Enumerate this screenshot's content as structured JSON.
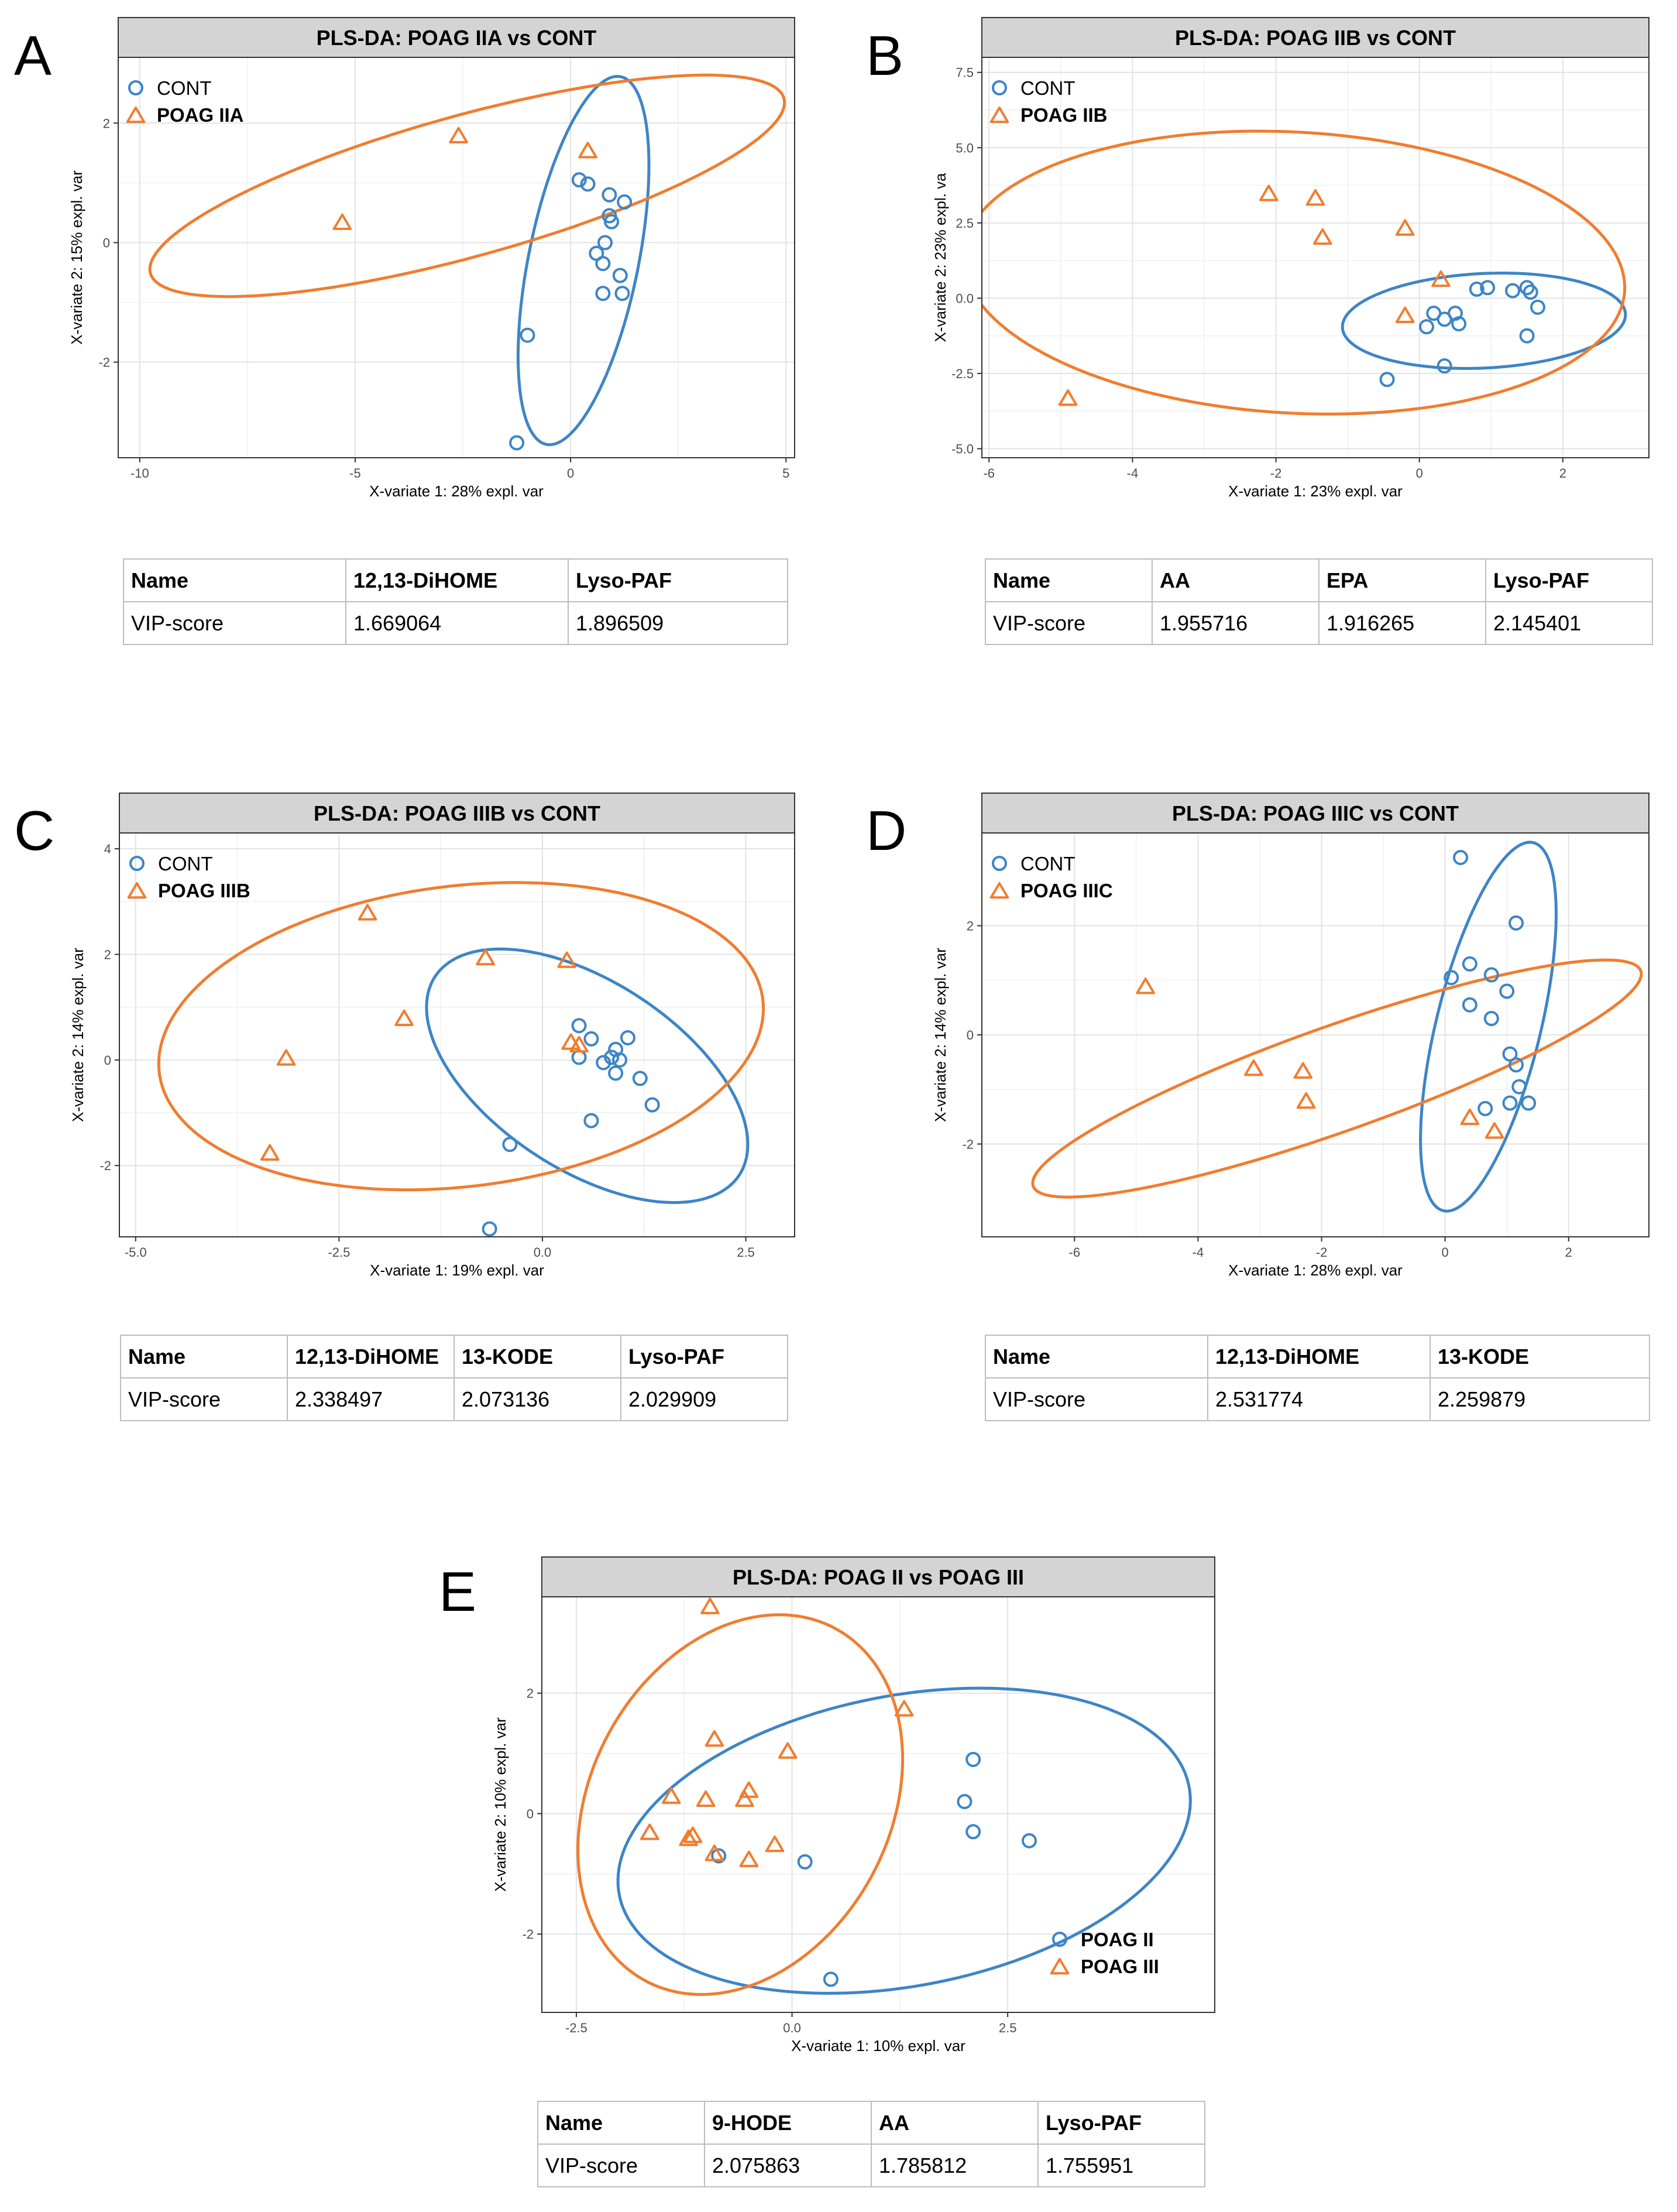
{
  "colors": {
    "cont": "#3d85c6",
    "poag": "#f07d2f",
    "strip": "#d4d4d4"
  },
  "panels": [
    {
      "letter": "A"
    },
    {
      "letter": "B"
    },
    {
      "letter": "C"
    },
    {
      "letter": "D"
    },
    {
      "letter": "E"
    }
  ],
  "chart_data": [
    {
      "type": "scatter",
      "title": "PLS-DA: POAG IIA vs CONT",
      "xlabel": "X-variate 1: 28% expl. var",
      "ylabel": "X-variate 2: 15% expl. var",
      "xlim": [
        -10.5,
        5.2
      ],
      "ylim": [
        -3.6,
        3.1
      ],
      "xticks": [
        -10,
        -5,
        0,
        5
      ],
      "yticks": [
        -2,
        0,
        2
      ],
      "grid": true,
      "legend_position": "top-left",
      "series": [
        {
          "name": "CONT",
          "marker": "circle",
          "color": "#3d85c6",
          "points": [
            [
              0.2,
              1.05
            ],
            [
              0.4,
              0.98
            ],
            [
              0.9,
              0.8
            ],
            [
              1.25,
              0.68
            ],
            [
              0.9,
              0.45
            ],
            [
              0.95,
              0.35
            ],
            [
              0.8,
              0.0
            ],
            [
              0.6,
              -0.18
            ],
            [
              0.75,
              -0.35
            ],
            [
              1.15,
              -0.55
            ],
            [
              0.75,
              -0.85
            ],
            [
              1.2,
              -0.85
            ],
            [
              -1.0,
              -1.55
            ],
            [
              -1.25,
              -3.35
            ]
          ],
          "ellipse": {
            "cx": 0.3,
            "cy": -0.3,
            "rx": 3.2,
            "ry": 1.25,
            "angle_deg": 73
          }
        },
        {
          "name": "POAG IIA",
          "marker": "triangle",
          "color": "#f07d2f",
          "points": [
            [
              0.4,
              1.55
            ],
            [
              -2.6,
              1.8
            ],
            [
              -5.3,
              0.35
            ]
          ],
          "ellipse": {
            "cx": -2.4,
            "cy": 0.95,
            "rx": 7.5,
            "ry": 1.2,
            "angle_deg": 11
          }
        }
      ]
    },
    {
      "type": "scatter",
      "title": "PLS-DA: POAG IIB vs CONT",
      "xlabel": "X-variate 1: 23% expl. var",
      "ylabel": "X-variate 2: 23% expl. va",
      "xlim": [
        -6.1,
        3.2
      ],
      "ylim": [
        -5.3,
        8.0
      ],
      "xticks": [
        -6,
        -4,
        -2,
        0,
        2
      ],
      "yticks": [
        -5.0,
        -2.5,
        0,
        2.5,
        5.0,
        7.5
      ],
      "ytick_labels": [
        "-5.0",
        "-2.5",
        "0.0",
        "2.5",
        "5.0",
        "7.5"
      ],
      "grid": true,
      "legend_position": "top-left",
      "series": [
        {
          "name": "CONT",
          "marker": "circle",
          "color": "#3d85c6",
          "points": [
            [
              0.8,
              0.3
            ],
            [
              0.95,
              0.35
            ],
            [
              1.3,
              0.25
            ],
            [
              1.5,
              0.35
            ],
            [
              1.55,
              0.2
            ],
            [
              1.65,
              -0.3
            ],
            [
              0.2,
              -0.5
            ],
            [
              0.5,
              -0.5
            ],
            [
              0.35,
              -0.7
            ],
            [
              0.1,
              -0.95
            ],
            [
              0.55,
              -0.85
            ],
            [
              1.5,
              -1.25
            ],
            [
              -0.45,
              -2.7
            ],
            [
              0.35,
              -2.25
            ]
          ],
          "ellipse": {
            "cx": 0.9,
            "cy": -0.75,
            "rx": 2.0,
            "ry": 1.55,
            "angle_deg": 15
          }
        },
        {
          "name": "POAG IIB",
          "marker": "triangle",
          "color": "#f07d2f",
          "points": [
            [
              -2.1,
              3.5
            ],
            [
              -1.45,
              3.35
            ],
            [
              -1.35,
              2.05
            ],
            [
              -0.2,
              2.35
            ],
            [
              0.3,
              0.65
            ],
            [
              -0.2,
              -0.55
            ],
            [
              -4.9,
              -3.3
            ]
          ],
          "ellipse": {
            "cx": -1.75,
            "cy": 0.85,
            "rx": 4.4,
            "ry": 4.9,
            "angle_deg": 40
          }
        }
      ]
    },
    {
      "type": "scatter",
      "title": "PLS-DA: POAG IIIB vs CONT",
      "xlabel": "X-variate 1: 19% expl. var",
      "ylabel": "X-variate 2: 14% expl. var",
      "xlim": [
        -5.2,
        3.1
      ],
      "ylim": [
        -3.35,
        4.3
      ],
      "xticks": [
        -5.0,
        -2.5,
        0.0,
        2.5
      ],
      "xtick_labels": [
        "-5.0",
        "-2.5",
        "0.0",
        "2.5"
      ],
      "yticks": [
        -2,
        0,
        2,
        4
      ],
      "grid": true,
      "legend_position": "top-left",
      "series": [
        {
          "name": "CONT",
          "marker": "circle",
          "color": "#3d85c6",
          "points": [
            [
              0.45,
              0.65
            ],
            [
              0.6,
              0.4
            ],
            [
              1.05,
              0.42
            ],
            [
              0.9,
              0.2
            ],
            [
              0.85,
              0.05
            ],
            [
              0.95,
              0.0
            ],
            [
              0.75,
              -0.05
            ],
            [
              0.9,
              -0.25
            ],
            [
              1.2,
              -0.35
            ],
            [
              0.45,
              0.05
            ],
            [
              1.35,
              -0.85
            ],
            [
              0.6,
              -1.15
            ],
            [
              -0.4,
              -1.6
            ],
            [
              -0.65,
              -3.2
            ]
          ],
          "ellipse": {
            "cx": 0.55,
            "cy": -0.3,
            "rx": 1.45,
            "ry": 2.75,
            "angle_deg": 35
          }
        },
        {
          "name": "POAG IIIB",
          "marker": "triangle",
          "color": "#f07d2f",
          "points": [
            [
              -2.15,
              2.8
            ],
            [
              -0.7,
              1.95
            ],
            [
              0.3,
              1.9
            ],
            [
              -1.7,
              0.8
            ],
            [
              0.35,
              0.35
            ],
            [
              0.45,
              0.3
            ],
            [
              -3.15,
              0.05
            ],
            [
              -3.35,
              -1.75
            ]
          ],
          "ellipse": {
            "cx": -1.0,
            "cy": 0.45,
            "rx": 3.8,
            "ry": 2.8,
            "angle_deg": 18
          }
        }
      ]
    },
    {
      "type": "scatter",
      "title": "PLS-DA: POAG IIIC vs CONT",
      "xlabel": "X-variate 1: 28% expl. var",
      "ylabel": "X-variate 2: 14% expl. var",
      "xlim": [
        -7.5,
        3.3
      ],
      "ylim": [
        -3.7,
        3.7
      ],
      "xticks": [
        -6,
        -4,
        -2,
        0,
        2
      ],
      "yticks": [
        -2,
        0,
        2
      ],
      "grid": true,
      "legend_position": "top-left",
      "series": [
        {
          "name": "CONT",
          "marker": "circle",
          "color": "#3d85c6",
          "points": [
            [
              0.25,
              3.25
            ],
            [
              1.15,
              2.05
            ],
            [
              0.4,
              1.3
            ],
            [
              0.75,
              1.1
            ],
            [
              0.1,
              1.05
            ],
            [
              1.0,
              0.8
            ],
            [
              0.4,
              0.55
            ],
            [
              0.75,
              0.3
            ],
            [
              1.05,
              -0.35
            ],
            [
              1.15,
              -0.55
            ],
            [
              1.2,
              -0.95
            ],
            [
              1.35,
              -1.25
            ],
            [
              1.05,
              -1.25
            ],
            [
              0.65,
              -1.35
            ]
          ],
          "ellipse": {
            "cx": 0.7,
            "cy": 0.15,
            "rx": 3.45,
            "ry": 0.85,
            "angle_deg": 78
          }
        },
        {
          "name": "POAG IIIC",
          "marker": "triangle",
          "color": "#f07d2f",
          "points": [
            [
              -4.85,
              0.9
            ],
            [
              -3.1,
              -0.6
            ],
            [
              -2.3,
              -0.65
            ],
            [
              -2.25,
              -1.2
            ],
            [
              0.4,
              -1.5
            ],
            [
              0.8,
              -1.75
            ]
          ],
          "ellipse": {
            "cx": -1.75,
            "cy": -0.8,
            "rx": 5.3,
            "ry": 0.95,
            "angle_deg": 22
          }
        }
      ]
    },
    {
      "type": "scatter",
      "title": "PLS-DA: POAG II vs POAG III",
      "xlabel": "X-variate 1: 10% expl. var",
      "ylabel": "X-variate 2: 10% expl. var",
      "xlim": [
        -2.9,
        4.9
      ],
      "ylim": [
        -3.3,
        3.6
      ],
      "xticks": [
        -2.5,
        0.0,
        2.5
      ],
      "xtick_labels": [
        "-2.5",
        "0.0",
        "2.5"
      ],
      "yticks": [
        -2,
        0,
        2
      ],
      "grid": true,
      "legend_position": "bottom-right",
      "series": [
        {
          "name": "POAG II",
          "marker": "circle",
          "color": "#3d85c6",
          "points": [
            [
              2.1,
              0.9
            ],
            [
              2.0,
              0.2
            ],
            [
              2.1,
              -0.3
            ],
            [
              2.75,
              -0.45
            ],
            [
              0.15,
              -0.8
            ],
            [
              -0.85,
              -0.7
            ],
            [
              0.45,
              -2.75
            ]
          ],
          "ellipse": {
            "cx": 1.3,
            "cy": -0.45,
            "rx": 3.45,
            "ry": 2.35,
            "angle_deg": 22
          }
        },
        {
          "name": "POAG III",
          "marker": "triangle",
          "color": "#f07d2f",
          "points": [
            [
              -0.95,
              3.45
            ],
            [
              1.3,
              1.75
            ],
            [
              -0.9,
              1.25
            ],
            [
              -0.05,
              1.05
            ],
            [
              -1.4,
              0.3
            ],
            [
              -1.0,
              0.25
            ],
            [
              -0.5,
              0.4
            ],
            [
              -0.55,
              0.25
            ],
            [
              -1.65,
              -0.3
            ],
            [
              -1.15,
              -0.35
            ],
            [
              -1.2,
              -0.4
            ],
            [
              -0.2,
              -0.5
            ],
            [
              -0.9,
              -0.65
            ],
            [
              -0.5,
              -0.75
            ]
          ],
          "ellipse": {
            "cx": -0.6,
            "cy": 0.15,
            "rx": 3.2,
            "ry": 1.8,
            "angle_deg": 78
          }
        }
      ]
    }
  ],
  "tables": [
    {
      "header": [
        "Name",
        "12,13-DiHOME",
        "Lyso-PAF"
      ],
      "row": [
        "VIP-score",
        "1.669064",
        "1.896509"
      ]
    },
    {
      "header": [
        "Name",
        "AA",
        "EPA",
        "Lyso-PAF"
      ],
      "row": [
        "VIP-score",
        "1.955716",
        "1.916265",
        "2.145401"
      ]
    },
    {
      "header": [
        "Name",
        "12,13-DiHOME",
        "13-KODE",
        "Lyso-PAF"
      ],
      "row": [
        "VIP-score",
        "2.338497",
        "2.073136",
        "2.029909"
      ]
    },
    {
      "header": [
        "Name",
        "12,13-DiHOME",
        "13-KODE"
      ],
      "row": [
        "VIP-score",
        "2.531774",
        "2.259879"
      ]
    },
    {
      "header": [
        "Name",
        "9-HODE",
        "AA",
        "Lyso-PAF"
      ],
      "row": [
        "VIP-score",
        "2.075863",
        "1.785812",
        "1.755951"
      ]
    }
  ]
}
